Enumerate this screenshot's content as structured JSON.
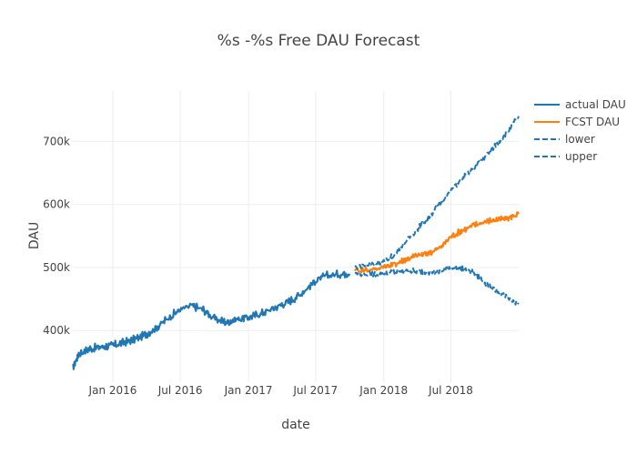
{
  "chart_data": {
    "type": "line",
    "title": "%s -%s Free DAU Forecast",
    "xlabel": "date",
    "ylabel": "DAU",
    "x_axis": {
      "range": [
        "2015-09-15",
        "2018-12-31"
      ],
      "ticks": [
        {
          "date": "2016-01-01",
          "label": "Jan 2016"
        },
        {
          "date": "2016-07-01",
          "label": "Jul 2016"
        },
        {
          "date": "2017-01-01",
          "label": "Jan 2017"
        },
        {
          "date": "2017-07-01",
          "label": "Jul 2017"
        },
        {
          "date": "2018-01-01",
          "label": "Jan 2018"
        },
        {
          "date": "2018-07-01",
          "label": "Jul 2018"
        }
      ]
    },
    "y_axis": {
      "range": [
        318000,
        780000
      ],
      "ticks": [
        {
          "value": 400000,
          "label": "400k"
        },
        {
          "value": 500000,
          "label": "500k"
        },
        {
          "value": 600000,
          "label": "600k"
        },
        {
          "value": 700000,
          "label": "700k"
        }
      ]
    },
    "grid": true,
    "legend_position": "top-right",
    "series": [
      {
        "name": "actual DAU",
        "color": "#1f77b4",
        "dash": "solid",
        "points": [
          [
            "2015-09-15",
            340000
          ],
          [
            "2015-10-01",
            362000
          ],
          [
            "2015-11-01",
            370000
          ],
          [
            "2015-12-01",
            373000
          ],
          [
            "2016-01-01",
            375000
          ],
          [
            "2016-02-01",
            380000
          ],
          [
            "2016-03-01",
            385000
          ],
          [
            "2016-04-01",
            393000
          ],
          [
            "2016-05-01",
            405000
          ],
          [
            "2016-06-01",
            420000
          ],
          [
            "2016-07-01",
            432000
          ],
          [
            "2016-08-01",
            438000
          ],
          [
            "2016-09-01",
            432000
          ],
          [
            "2016-10-01",
            418000
          ],
          [
            "2016-11-01",
            412000
          ],
          [
            "2016-12-01",
            417000
          ],
          [
            "2017-01-01",
            420000
          ],
          [
            "2017-02-01",
            425000
          ],
          [
            "2017-03-01",
            432000
          ],
          [
            "2017-04-01",
            440000
          ],
          [
            "2017-05-01",
            448000
          ],
          [
            "2017-06-01",
            462000
          ],
          [
            "2017-07-01",
            478000
          ],
          [
            "2017-08-01",
            486000
          ],
          [
            "2017-09-01",
            488000
          ],
          [
            "2017-10-01",
            490000
          ]
        ]
      },
      {
        "name": "FCST DAU",
        "color": "#ff7f0e",
        "dash": "solid",
        "points": [
          [
            "2017-10-15",
            495000
          ],
          [
            "2017-12-01",
            496000
          ],
          [
            "2018-01-01",
            500000
          ],
          [
            "2018-02-01",
            505000
          ],
          [
            "2018-03-01",
            512000
          ],
          [
            "2018-04-01",
            518000
          ],
          [
            "2018-05-01",
            522000
          ],
          [
            "2018-06-01",
            530000
          ],
          [
            "2018-07-01",
            548000
          ],
          [
            "2018-08-01",
            558000
          ],
          [
            "2018-09-01",
            566000
          ],
          [
            "2018-10-01",
            572000
          ],
          [
            "2018-11-01",
            575000
          ],
          [
            "2018-12-01",
            577000
          ],
          [
            "2018-12-31",
            585000
          ]
        ]
      },
      {
        "name": "lower",
        "color": "#1f77b4",
        "dash": "dashed",
        "points": [
          [
            "2017-10-15",
            490000
          ],
          [
            "2017-12-01",
            488000
          ],
          [
            "2018-01-01",
            490000
          ],
          [
            "2018-02-01",
            492000
          ],
          [
            "2018-03-01",
            494000
          ],
          [
            "2018-04-01",
            493000
          ],
          [
            "2018-05-01",
            492000
          ],
          [
            "2018-06-01",
            492000
          ],
          [
            "2018-07-01",
            500000
          ],
          [
            "2018-08-01",
            498000
          ],
          [
            "2018-09-01",
            490000
          ],
          [
            "2018-10-01",
            475000
          ],
          [
            "2018-11-01",
            462000
          ],
          [
            "2018-12-01",
            450000
          ],
          [
            "2018-12-31",
            442000
          ]
        ]
      },
      {
        "name": "upper",
        "color": "#1f77b4",
        "dash": "dashed",
        "points": [
          [
            "2017-10-15",
            500000
          ],
          [
            "2017-12-01",
            505000
          ],
          [
            "2018-01-01",
            508000
          ],
          [
            "2018-02-01",
            520000
          ],
          [
            "2018-03-01",
            540000
          ],
          [
            "2018-04-01",
            560000
          ],
          [
            "2018-05-01",
            578000
          ],
          [
            "2018-06-01",
            600000
          ],
          [
            "2018-07-01",
            622000
          ],
          [
            "2018-08-01",
            640000
          ],
          [
            "2018-09-01",
            658000
          ],
          [
            "2018-10-01",
            675000
          ],
          [
            "2018-11-01",
            695000
          ],
          [
            "2018-12-01",
            715000
          ],
          [
            "2018-12-31",
            740000
          ]
        ]
      }
    ]
  }
}
